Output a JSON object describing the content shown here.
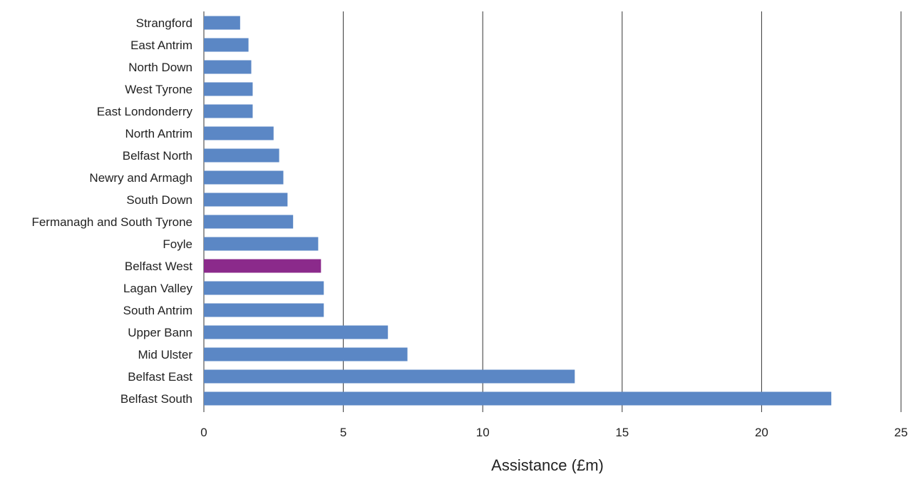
{
  "chart_data": {
    "type": "bar",
    "orientation": "horizontal",
    "title": "",
    "xlabel": "Assistance (£m)",
    "ylabel": "",
    "xlim": [
      0,
      25
    ],
    "xticks": [
      "0",
      "5",
      "10",
      "15",
      "20",
      "25"
    ],
    "grid": "vertical",
    "legend": "none",
    "categories": [
      "Strangford",
      "East Antrim",
      "North Down",
      "West Tyrone",
      "East Londonderry",
      "North Antrim",
      "Belfast North",
      "Newry and Armagh",
      "South Down",
      "Fermanagh and South Tyrone",
      "Foyle",
      "Belfast West",
      "Lagan Valley",
      "South Antrim",
      "Upper Bann",
      "Mid Ulster",
      "Belfast East",
      "Belfast South"
    ],
    "values": [
      1.3,
      1.6,
      1.7,
      1.75,
      1.75,
      2.5,
      2.7,
      2.85,
      3.0,
      3.2,
      4.1,
      4.2,
      4.3,
      4.3,
      6.6,
      7.3,
      13.3,
      22.5
    ],
    "colors": {
      "default": "#5b87c5",
      "highlight": "#8b2a8b",
      "highlight_category": "Belfast West",
      "gridline": "#333333"
    }
  }
}
